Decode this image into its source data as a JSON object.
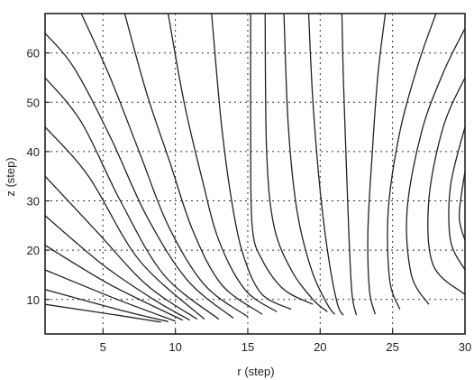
{
  "chart_data": {
    "type": "contour",
    "title": "",
    "xlabel": "r (step)",
    "ylabel": "z (step)",
    "xlim": [
      1,
      30
    ],
    "ylim": [
      3,
      68
    ],
    "xticks": [
      5,
      10,
      15,
      20,
      25,
      30
    ],
    "yticks": [
      10,
      20,
      30,
      40,
      50,
      60
    ],
    "grid": true,
    "grid_style": "dotted",
    "line_color": "#222222",
    "series": [
      {
        "values": [
          {
            "x": 15.2,
            "z": 68
          },
          {
            "x": 15.2,
            "z": 45
          },
          {
            "x": 15.3,
            "z": 25
          },
          {
            "x": 16,
            "z": 18
          },
          {
            "x": 17.5,
            "z": 12
          },
          {
            "x": 19.5,
            "z": 9
          }
        ]
      },
      {
        "values": [
          {
            "x": 12.5,
            "z": 68
          },
          {
            "x": 13.2,
            "z": 45
          },
          {
            "x": 14,
            "z": 28
          },
          {
            "x": 14.8,
            "z": 18
          },
          {
            "x": 16,
            "z": 11
          },
          {
            "x": 18,
            "z": 8
          }
        ]
      },
      {
        "values": [
          {
            "x": 9.5,
            "z": 68
          },
          {
            "x": 10.6,
            "z": 50
          },
          {
            "x": 11.8,
            "z": 35
          },
          {
            "x": 13,
            "z": 22
          },
          {
            "x": 14.8,
            "z": 12
          },
          {
            "x": 17,
            "z": 7.5
          }
        ]
      },
      {
        "values": [
          {
            "x": 6.5,
            "z": 68
          },
          {
            "x": 8,
            "z": 52
          },
          {
            "x": 9.6,
            "z": 38
          },
          {
            "x": 11.2,
            "z": 24
          },
          {
            "x": 13.2,
            "z": 13
          },
          {
            "x": 16,
            "z": 7
          }
        ]
      },
      {
        "values": [
          {
            "x": 3.5,
            "z": 68
          },
          {
            "x": 5.5,
            "z": 55
          },
          {
            "x": 7.5,
            "z": 40
          },
          {
            "x": 9.5,
            "z": 25
          },
          {
            "x": 12,
            "z": 13
          },
          {
            "x": 15,
            "z": 6.5
          }
        ]
      },
      {
        "values": [
          {
            "x": 1,
            "z": 64
          },
          {
            "x": 3,
            "z": 57
          },
          {
            "x": 5.5,
            "z": 43
          },
          {
            "x": 8,
            "z": 27
          },
          {
            "x": 10.8,
            "z": 14
          },
          {
            "x": 14,
            "z": 6.2
          }
        ]
      },
      {
        "values": [
          {
            "x": 1,
            "z": 55
          },
          {
            "x": 3.5,
            "z": 46
          },
          {
            "x": 6.2,
            "z": 30
          },
          {
            "x": 9.2,
            "z": 15
          },
          {
            "x": 13,
            "z": 6
          }
        ]
      },
      {
        "values": [
          {
            "x": 1,
            "z": 45
          },
          {
            "x": 4,
            "z": 35
          },
          {
            "x": 7.5,
            "z": 18
          },
          {
            "x": 12,
            "z": 6
          }
        ]
      },
      {
        "values": [
          {
            "x": 1,
            "z": 35
          },
          {
            "x": 4.5,
            "z": 24
          },
          {
            "x": 8,
            "z": 13
          },
          {
            "x": 11.5,
            "z": 6
          }
        ]
      },
      {
        "values": [
          {
            "x": 1,
            "z": 27
          },
          {
            "x": 5,
            "z": 17
          },
          {
            "x": 8.5,
            "z": 10
          },
          {
            "x": 11,
            "z": 5.8
          }
        ]
      },
      {
        "values": [
          {
            "x": 1,
            "z": 21
          },
          {
            "x": 5.5,
            "z": 13
          },
          {
            "x": 10.5,
            "z": 5.8
          }
        ]
      },
      {
        "values": [
          {
            "x": 1,
            "z": 16
          },
          {
            "x": 6,
            "z": 10
          },
          {
            "x": 10,
            "z": 5.6
          }
        ]
      },
      {
        "values": [
          {
            "x": 1,
            "z": 12
          },
          {
            "x": 6,
            "z": 8
          },
          {
            "x": 9.5,
            "z": 5.5
          }
        ]
      },
      {
        "values": [
          {
            "x": 1,
            "z": 9
          },
          {
            "x": 6,
            "z": 6.8
          },
          {
            "x": 9,
            "z": 5.4
          }
        ]
      },
      {
        "values": [
          {
            "x": 16.2,
            "z": 68
          },
          {
            "x": 16.3,
            "z": 40
          },
          {
            "x": 16.8,
            "z": 25
          },
          {
            "x": 18,
            "z": 16
          },
          {
            "x": 19.5,
            "z": 10
          },
          {
            "x": 20.5,
            "z": 7.5
          }
        ]
      },
      {
        "values": [
          {
            "x": 17.5,
            "z": 68
          },
          {
            "x": 17.8,
            "z": 45
          },
          {
            "x": 18.4,
            "z": 28
          },
          {
            "x": 19.4,
            "z": 16
          },
          {
            "x": 20.5,
            "z": 9
          },
          {
            "x": 21,
            "z": 7
          }
        ]
      },
      {
        "values": [
          {
            "x": 19.2,
            "z": 68
          },
          {
            "x": 19.5,
            "z": 50
          },
          {
            "x": 20,
            "z": 32
          },
          {
            "x": 20.6,
            "z": 18
          },
          {
            "x": 21.2,
            "z": 9
          },
          {
            "x": 21.6,
            "z": 6.8
          }
        ]
      },
      {
        "values": [
          {
            "x": 21.5,
            "z": 68
          },
          {
            "x": 21.6,
            "z": 55
          },
          {
            "x": 21.8,
            "z": 38
          },
          {
            "x": 22,
            "z": 22
          },
          {
            "x": 22.2,
            "z": 11
          },
          {
            "x": 22.5,
            "z": 6.8
          }
        ]
      },
      {
        "values": [
          {
            "x": 24.5,
            "z": 68
          },
          {
            "x": 24,
            "z": 56
          },
          {
            "x": 23.6,
            "z": 40
          },
          {
            "x": 23.3,
            "z": 24
          },
          {
            "x": 23.4,
            "z": 12
          },
          {
            "x": 23.8,
            "z": 7
          }
        ]
      },
      {
        "values": [
          {
            "x": 28,
            "z": 68
          },
          {
            "x": 26.8,
            "z": 58
          },
          {
            "x": 25.5,
            "z": 44
          },
          {
            "x": 24.7,
            "z": 28
          },
          {
            "x": 24.8,
            "z": 14
          },
          {
            "x": 25.5,
            "z": 8
          }
        ]
      },
      {
        "values": [
          {
            "x": 30,
            "z": 65
          },
          {
            "x": 28.5,
            "z": 56
          },
          {
            "x": 27,
            "z": 44
          },
          {
            "x": 26,
            "z": 28
          },
          {
            "x": 26.3,
            "z": 15
          },
          {
            "x": 27.5,
            "z": 9
          }
        ]
      },
      {
        "values": [
          {
            "x": 30,
            "z": 55
          },
          {
            "x": 28.5,
            "z": 45
          },
          {
            "x": 27.5,
            "z": 30
          },
          {
            "x": 27.8,
            "z": 17
          },
          {
            "x": 30,
            "z": 11
          }
        ]
      },
      {
        "values": [
          {
            "x": 30,
            "z": 45
          },
          {
            "x": 29,
            "z": 33
          },
          {
            "x": 29,
            "z": 22
          },
          {
            "x": 30,
            "z": 16
          }
        ]
      },
      {
        "values": [
          {
            "x": 30,
            "z": 36
          },
          {
            "x": 29.6,
            "z": 27
          },
          {
            "x": 30,
            "z": 22
          }
        ]
      }
    ]
  }
}
